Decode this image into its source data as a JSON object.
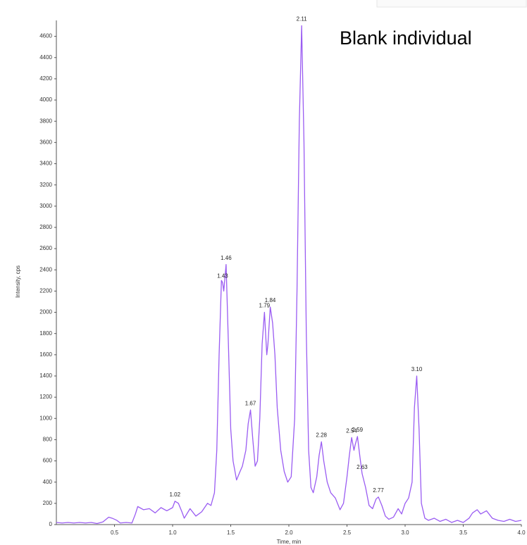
{
  "chart_data": {
    "type": "line",
    "title": "Blank individual",
    "x_label": "Time, min",
    "y_label": "Intensity, cps",
    "color": "#9a5cf2",
    "xlim": [
      0,
      4.0
    ],
    "ylim": [
      0,
      4750
    ],
    "xticks": [
      0.5,
      {
        "value": 1,
        "label": "1.0"
      },
      1.5,
      {
        "value": 2,
        "label": "2.0"
      },
      2.5,
      {
        "value": 3,
        "label": "3.0"
      },
      3.5,
      {
        "value": 4,
        "label": "4.0"
      }
    ],
    "yticks": [
      0,
      200,
      400,
      600,
      800,
      1000,
      1200,
      1400,
      1600,
      1800,
      2000,
      2200,
      2400,
      2600,
      2800,
      3000,
      3200,
      3400,
      3600,
      3800,
      4000,
      4200,
      4400,
      4600
    ],
    "x": [
      0,
      0.05,
      0.1,
      0.15,
      0.2,
      0.25,
      0.3,
      0.35,
      0.4,
      0.45,
      0.48,
      0.52,
      0.55,
      0.6,
      0.65,
      0.68,
      0.7,
      0.75,
      0.8,
      0.85,
      0.9,
      0.95,
      1.0,
      1.02,
      1.05,
      1.08,
      1.1,
      1.15,
      1.2,
      1.25,
      1.3,
      1.33,
      1.36,
      1.38,
      1.4,
      1.42,
      1.43,
      1.44,
      1.46,
      1.48,
      1.5,
      1.52,
      1.55,
      1.58,
      1.6,
      1.63,
      1.65,
      1.67,
      1.69,
      1.71,
      1.73,
      1.75,
      1.77,
      1.79,
      1.81,
      1.82,
      1.84,
      1.86,
      1.88,
      1.9,
      1.93,
      1.96,
      1.99,
      2.02,
      2.05,
      2.07,
      2.09,
      2.11,
      2.13,
      2.15,
      2.17,
      2.19,
      2.21,
      2.24,
      2.26,
      2.28,
      2.3,
      2.33,
      2.36,
      2.4,
      2.44,
      2.47,
      2.5,
      2.52,
      2.54,
      2.56,
      2.57,
      2.59,
      2.61,
      2.63,
      2.66,
      2.69,
      2.72,
      2.75,
      2.77,
      2.8,
      2.83,
      2.86,
      2.9,
      2.94,
      2.97,
      3.0,
      3.03,
      3.06,
      3.08,
      3.1,
      3.12,
      3.14,
      3.17,
      3.2,
      3.25,
      3.3,
      3.35,
      3.4,
      3.45,
      3.5,
      3.55,
      3.58,
      3.62,
      3.65,
      3.7,
      3.75,
      3.8,
      3.85,
      3.9,
      3.95,
      4.0
    ],
    "values": [
      20,
      15,
      20,
      15,
      20,
      15,
      20,
      10,
      25,
      70,
      60,
      40,
      15,
      20,
      15,
      100,
      170,
      140,
      150,
      110,
      160,
      130,
      160,
      220,
      200,
      120,
      60,
      150,
      80,
      120,
      200,
      180,
      300,
      700,
      1600,
      2300,
      2280,
      2200,
      2450,
      1700,
      900,
      600,
      420,
      500,
      550,
      700,
      950,
      1080,
      800,
      550,
      600,
      1000,
      1700,
      2000,
      1600,
      1700,
      2050,
      1900,
      1600,
      1100,
      700,
      500,
      400,
      450,
      1000,
      2200,
      3800,
      4700,
      3600,
      1800,
      700,
      350,
      300,
      450,
      650,
      780,
      600,
      400,
      300,
      250,
      140,
      200,
      450,
      650,
      820,
      700,
      750,
      830,
      650,
      480,
      350,
      180,
      150,
      240,
      260,
      180,
      80,
      50,
      70,
      150,
      100,
      200,
      250,
      400,
      1100,
      1400,
      900,
      200,
      60,
      40,
      60,
      30,
      50,
      20,
      40,
      20,
      60,
      110,
      140,
      100,
      130,
      60,
      40,
      30,
      50,
      30,
      40
    ],
    "peak_labels": [
      1.02,
      1.43,
      1.46,
      1.67,
      1.79,
      1.84,
      2.11,
      2.28,
      2.54,
      2.59,
      2.63,
      2.77,
      {
        "value": 3.1,
        "label": "3.10"
      }
    ]
  }
}
